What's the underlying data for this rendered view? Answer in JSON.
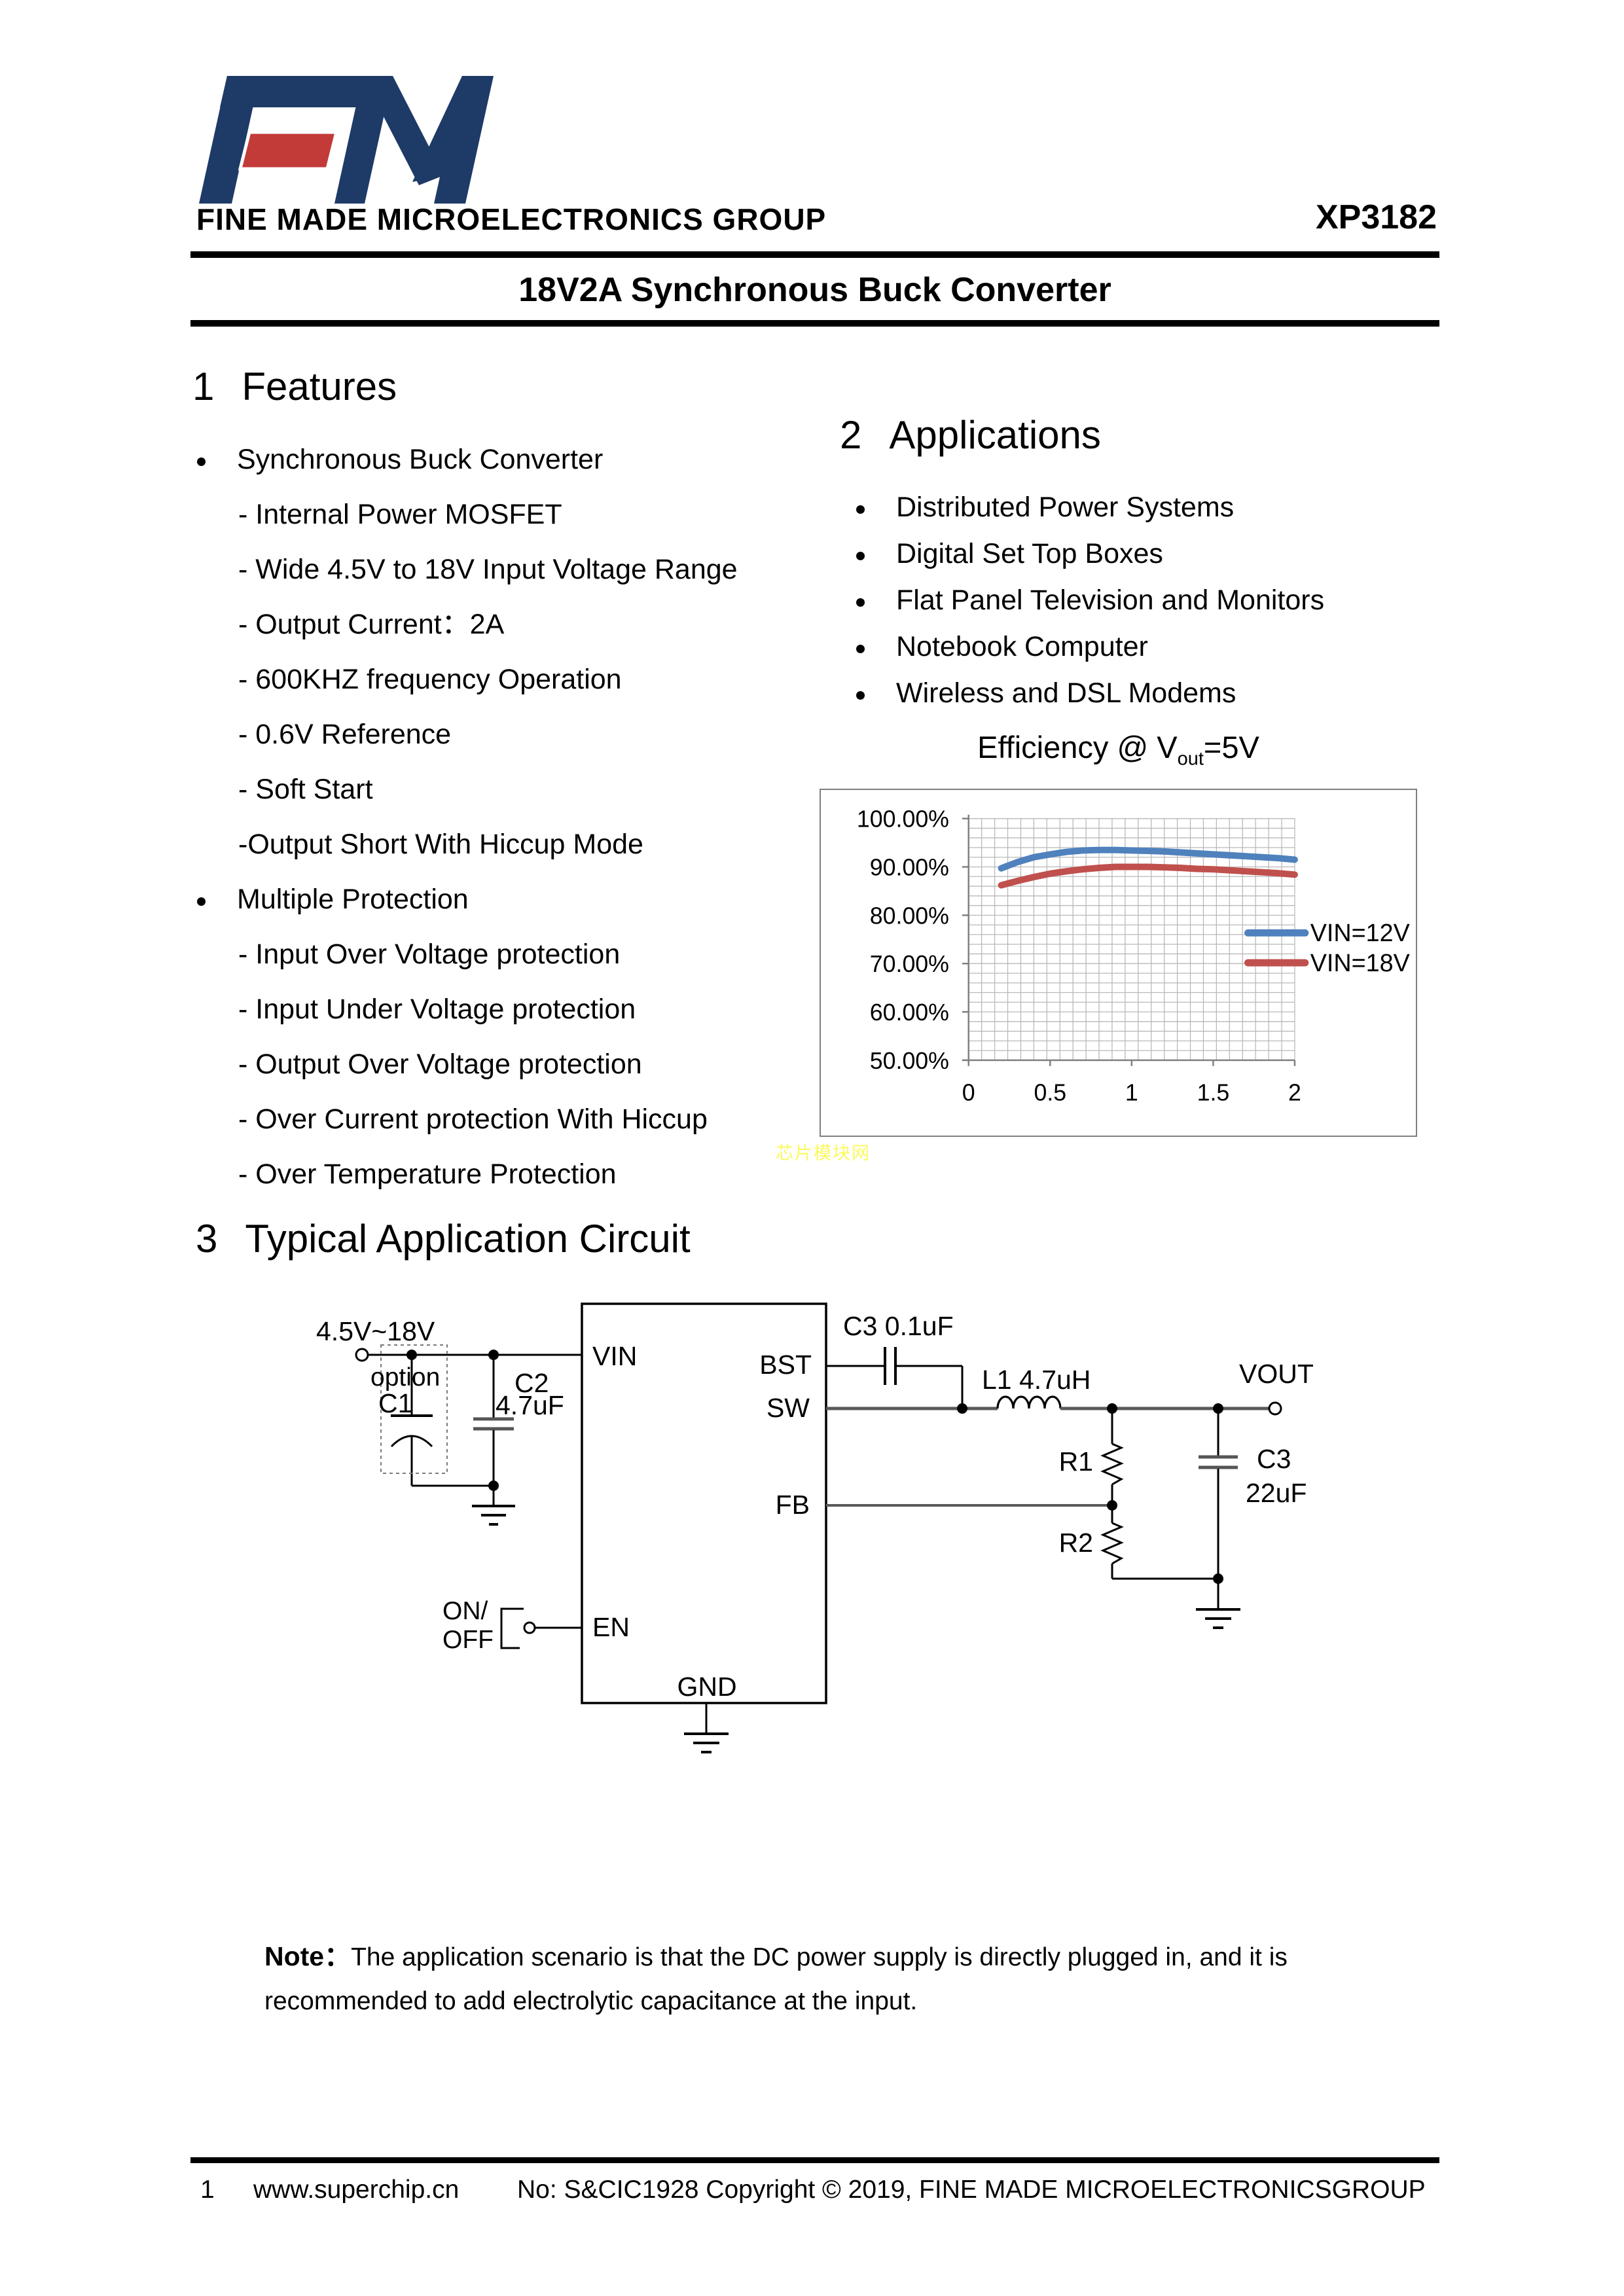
{
  "header": {
    "logo": "FM",
    "company": "FINE MADE MICROELECTRONICS GROUP",
    "part_number": "XP3182",
    "doc_title": "18V2A Synchronous Buck Converter",
    "logo_navy": "#1e3a67",
    "logo_red": "#c23b38"
  },
  "features": {
    "number": "1",
    "title": "Features",
    "items": [
      {
        "type": "bullet",
        "text": "Synchronous Buck Converter"
      },
      {
        "type": "dash",
        "text": "- Internal Power MOSFET"
      },
      {
        "type": "dash",
        "text": "- Wide 4.5V to 18V Input Voltage Range"
      },
      {
        "type": "dash",
        "text": "- Output Current：2A"
      },
      {
        "type": "dash",
        "text": "- 600KHZ frequency Operation"
      },
      {
        "type": "dash",
        "text": "- 0.6V Reference"
      },
      {
        "type": "dash",
        "text": "- Soft Start"
      },
      {
        "type": "dash",
        "text": "-Output Short With Hiccup Mode"
      },
      {
        "type": "bullet",
        "text": "Multiple Protection"
      },
      {
        "type": "dash",
        "text": "- Input Over Voltage protection"
      },
      {
        "type": "dash",
        "text": "- Input Under Voltage protection"
      },
      {
        "type": "dash",
        "text": "- Output Over Voltage protection"
      },
      {
        "type": "dash",
        "text": "- Over Current protection With Hiccup"
      },
      {
        "type": "dash",
        "text": "- Over Temperature Protection"
      }
    ]
  },
  "applications": {
    "number": "2",
    "title": "Applications",
    "items": [
      {
        "text": "Distributed Power Systems"
      },
      {
        "text": "Digital Set Top Boxes"
      },
      {
        "text": "Flat Panel Television and Monitors"
      },
      {
        "text": "Notebook Computer"
      },
      {
        "text": "Wireless and DSL Modems"
      }
    ]
  },
  "chart_data": {
    "type": "line",
    "title_prefix": "Efficiency @ V",
    "title_subscript": "out",
    "title_suffix": "=5V",
    "xlabel": "",
    "ylabel": "",
    "xlim": [
      0,
      2
    ],
    "ylim": [
      50,
      100
    ],
    "x_ticks": [
      0,
      0.5,
      1,
      1.5,
      2
    ],
    "x_tick_labels": [
      "0",
      "0.5",
      "1",
      "1.5",
      "2"
    ],
    "y_ticks": [
      100,
      90,
      80,
      70,
      60,
      50
    ],
    "y_tick_labels": [
      "100.00%",
      "90.00%",
      "80.00%",
      "70.00%",
      "60.00%",
      "50.00%"
    ],
    "grid": true,
    "minor_grid_x_divisions": 25,
    "minor_grid_y_divisions": 25,
    "grid_color": "#b9b9b9",
    "axis_color": "#808080",
    "legend_position": "right-middle",
    "series": [
      {
        "name": "VIN=12V",
        "color": "#4f81bd",
        "points": [
          [
            0.2,
            89.7
          ],
          [
            0.3,
            91.0
          ],
          [
            0.4,
            92.0
          ],
          [
            0.5,
            92.6
          ],
          [
            0.6,
            93.1
          ],
          [
            0.7,
            93.4
          ],
          [
            0.8,
            93.5
          ],
          [
            0.9,
            93.5
          ],
          [
            1.0,
            93.4
          ],
          [
            1.1,
            93.3
          ],
          [
            1.2,
            93.2
          ],
          [
            1.3,
            93.0
          ],
          [
            1.4,
            92.8
          ],
          [
            1.5,
            92.6
          ],
          [
            1.6,
            92.4
          ],
          [
            1.7,
            92.2
          ],
          [
            1.8,
            92.0
          ],
          [
            1.9,
            91.8
          ],
          [
            2.0,
            91.5
          ]
        ]
      },
      {
        "name": "VIN=18V",
        "color": "#c0504d",
        "points": [
          [
            0.2,
            86.2
          ],
          [
            0.3,
            87.1
          ],
          [
            0.4,
            87.9
          ],
          [
            0.5,
            88.6
          ],
          [
            0.6,
            89.1
          ],
          [
            0.7,
            89.5
          ],
          [
            0.8,
            89.8
          ],
          [
            0.9,
            90.0
          ],
          [
            1.0,
            90.0
          ],
          [
            1.1,
            90.0
          ],
          [
            1.2,
            89.9
          ],
          [
            1.3,
            89.8
          ],
          [
            1.4,
            89.6
          ],
          [
            1.5,
            89.5
          ],
          [
            1.6,
            89.3
          ],
          [
            1.7,
            89.1
          ],
          [
            1.8,
            88.9
          ],
          [
            1.9,
            88.7
          ],
          [
            2.0,
            88.4
          ]
        ]
      }
    ]
  },
  "watermark": {
    "text": "芯片模块网"
  },
  "circuit_section": {
    "number": "3",
    "title": "Typical Application Circuit"
  },
  "circuit": {
    "labels": {
      "supply_range": "4.5V~18V",
      "option": "option",
      "c1": "C1",
      "c2": "C2",
      "c2_value": "4.7uF",
      "pin_vin": "VIN",
      "pin_bst": "BST",
      "pin_sw": "SW",
      "pin_fb": "FB",
      "pin_en": "EN",
      "pin_gnd": "GND",
      "c3_bst": "C3 0.1uF",
      "l1": "L1 4.7uH",
      "vout": "VOUT",
      "r1": "R1",
      "r2": "R2",
      "c3_out": "C3",
      "c3_out_value": "22uF",
      "sw_on": "ON/",
      "sw_off": "OFF"
    }
  },
  "note": {
    "label": "Note：",
    "line1": "The application scenario is that the DC power supply is directly plugged in, and it is",
    "line2": "recommended to add electrolytic capacitance at the input."
  },
  "footer": {
    "page": "1",
    "website": "www.superchip.cn",
    "copyright": "No: S&CIC1928 Copyright © 2019, FINE MADE MICROELECTRONICSGROUP"
  }
}
